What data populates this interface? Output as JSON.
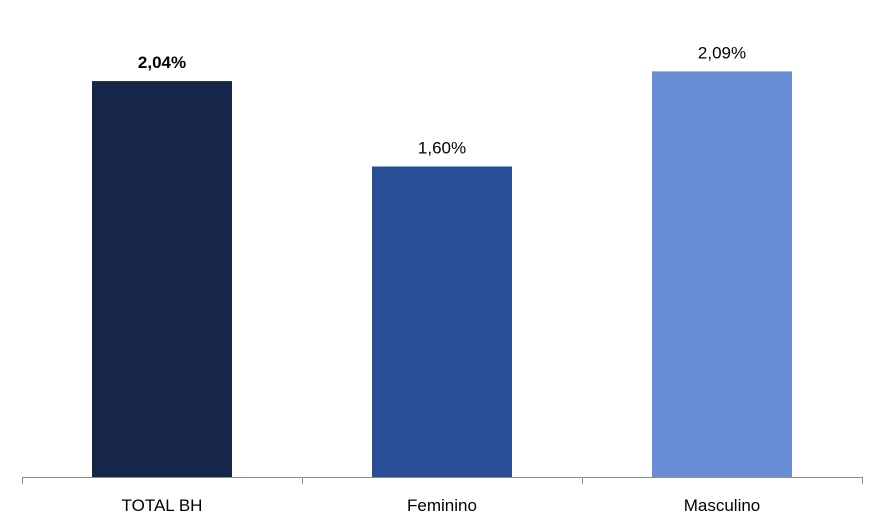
{
  "chart_data": {
    "type": "bar",
    "title": "",
    "xlabel": "",
    "ylabel": "",
    "ylim": [
      0,
      2.2
    ],
    "grid": false,
    "categories": [
      "TOTAL BH",
      "Feminino",
      "Masculino"
    ],
    "values": [
      2.04,
      1.6,
      2.09
    ],
    "data_labels": [
      "2,04%",
      "1,60%",
      "2,09%"
    ],
    "label_bold": [
      true,
      false,
      false
    ],
    "colors": [
      "#16254a",
      "#284f96",
      "#668dd6"
    ]
  }
}
